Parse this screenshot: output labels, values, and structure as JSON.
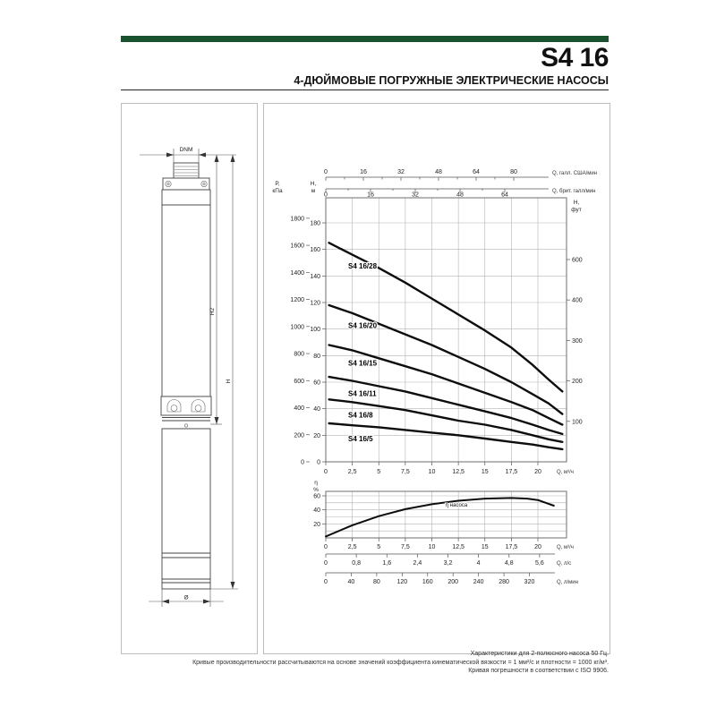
{
  "header": {
    "title": "S4 16",
    "subtitle": "4-ДЮЙМОВЫЕ ПОГРУЖНЫЕ ЭЛЕКТРИЧЕСКИЕ НАСОСЫ",
    "accent_color": "#1a5230"
  },
  "drawing": {
    "labels": {
      "dnm": "DNM",
      "h2": "H2",
      "h": "H",
      "diameter": "Ø"
    }
  },
  "chart_data": [
    {
      "type": "line",
      "title": "Pump head curves S4 16",
      "xlabel": "Q, м³/ч",
      "ylabel_left_outer_lines": [
        "P,",
        "кПа"
      ],
      "ylabel_left_inner_lines": [
        "H,",
        "м"
      ],
      "ylabel_right_lines": [
        "H,",
        "фут"
      ],
      "x_top_axes": [
        {
          "label": "Q, галл. США/мин",
          "ticks": [
            0,
            16,
            32,
            48,
            64,
            80
          ]
        },
        {
          "label": "Q, брит. галл/мин",
          "ticks": [
            0,
            16,
            32,
            48,
            64
          ]
        }
      ],
      "x_tick_values": [
        0,
        2.5,
        5,
        7.5,
        10,
        12.5,
        15,
        17.5,
        20
      ],
      "x_tick_labels": [
        "0",
        "2,5",
        "5",
        "7,5",
        "10",
        "12,5",
        "15",
        "17,5",
        "20"
      ],
      "xlim": [
        0,
        22.7
      ],
      "y_kpa_ticks": [
        0,
        200,
        400,
        600,
        800,
        1000,
        1200,
        1400,
        1600,
        1800
      ],
      "y_m_ticks": [
        0,
        20,
        40,
        60,
        80,
        100,
        120,
        140,
        160,
        180
      ],
      "y_ft_tick_labels": [
        "600",
        "400",
        "300",
        "200",
        "100"
      ],
      "ylim_m": [
        0,
        199
      ],
      "grid": true,
      "series": [
        {
          "name": "S4 16/28",
          "points": [
            [
              0.3,
              165
            ],
            [
              2.5,
              156
            ],
            [
              5,
              146
            ],
            [
              7.5,
              135
            ],
            [
              10,
              123
            ],
            [
              12.5,
              111
            ],
            [
              15,
              99
            ],
            [
              17.5,
              86
            ],
            [
              19.5,
              73
            ],
            [
              21,
              62
            ],
            [
              22.3,
              53
            ]
          ]
        },
        {
          "name": "S4 16/20",
          "points": [
            [
              0.3,
              118
            ],
            [
              2.5,
              112
            ],
            [
              5,
              104
            ],
            [
              7.5,
              96
            ],
            [
              10,
              88
            ],
            [
              12.5,
              79
            ],
            [
              15,
              70
            ],
            [
              17.5,
              60
            ],
            [
              19.5,
              51
            ],
            [
              21,
              44
            ],
            [
              22.3,
              36
            ]
          ]
        },
        {
          "name": "S4 16/15",
          "points": [
            [
              0.3,
              88
            ],
            [
              2.5,
              84
            ],
            [
              5,
              78
            ],
            [
              7.5,
              72
            ],
            [
              10,
              66
            ],
            [
              12.5,
              59
            ],
            [
              15,
              52
            ],
            [
              17.5,
              45
            ],
            [
              19.5,
              39
            ],
            [
              21,
              33
            ],
            [
              22.3,
              28
            ]
          ]
        },
        {
          "name": "S4 16/11",
          "points": [
            [
              0.3,
              64
            ],
            [
              2.5,
              61
            ],
            [
              5,
              57
            ],
            [
              7.5,
              53
            ],
            [
              10,
              48
            ],
            [
              12.5,
              43
            ],
            [
              15,
              38
            ],
            [
              17.5,
              33
            ],
            [
              19.5,
              28
            ],
            [
              21,
              24
            ],
            [
              22.3,
              21
            ]
          ]
        },
        {
          "name": "S4 16/8",
          "points": [
            [
              0.3,
              47
            ],
            [
              2.5,
              45
            ],
            [
              5,
              42
            ],
            [
              7.5,
              39
            ],
            [
              10,
              35
            ],
            [
              12.5,
              31
            ],
            [
              15,
              28
            ],
            [
              17.5,
              24
            ],
            [
              19.5,
              20
            ],
            [
              21,
              17
            ],
            [
              22.3,
              15
            ]
          ]
        },
        {
          "name": "S4 16/5",
          "points": [
            [
              0.3,
              29
            ],
            [
              2.5,
              27.5
            ],
            [
              5,
              26
            ],
            [
              7.5,
              24
            ],
            [
              10,
              22
            ],
            [
              12.5,
              20
            ],
            [
              15,
              17.5
            ],
            [
              17.5,
              15
            ],
            [
              19.5,
              13
            ],
            [
              21,
              11
            ],
            [
              22.3,
              9.5
            ]
          ]
        }
      ]
    },
    {
      "type": "line",
      "title": "Pump efficiency",
      "ylabel_lines": [
        "η",
        "%"
      ],
      "curve_label": "η насоса",
      "y_tick_values": [
        20,
        40,
        60
      ],
      "ylim_pct": [
        0,
        66
      ],
      "x_tick_values": [
        0,
        2.5,
        5,
        7.5,
        10,
        12.5,
        15,
        17.5,
        20
      ],
      "x_tick_labels": [
        "0",
        "2,5",
        "5",
        "7,5",
        "10",
        "12,5",
        "15",
        "17,5",
        "20"
      ],
      "xlabel": "Q, м³/ч",
      "x_scale_ls": {
        "label": "Q, л/с",
        "values": [
          0,
          0.8,
          1.6,
          2.4,
          3.2,
          4,
          4.8,
          5.6
        ],
        "labels": [
          "0",
          "0,8",
          "1,6",
          "2,4",
          "3,2",
          "4",
          "4,8",
          "5,6"
        ]
      },
      "x_scale_lmin": {
        "label": "Q, л/мин",
        "values": [
          0,
          40,
          80,
          120,
          160,
          200,
          240,
          280,
          320
        ],
        "labels": [
          "0",
          "40",
          "80",
          "120",
          "160",
          "200",
          "240",
          "280",
          "320"
        ]
      },
      "grid": true,
      "points": [
        [
          0,
          2
        ],
        [
          2.5,
          18
        ],
        [
          5,
          31
        ],
        [
          7.5,
          41
        ],
        [
          10,
          48
        ],
        [
          12.5,
          53
        ],
        [
          15,
          56
        ],
        [
          17.5,
          57
        ],
        [
          19,
          56
        ],
        [
          20,
          54
        ],
        [
          21.5,
          46
        ]
      ]
    }
  ],
  "footnotes": [
    "Характеристики для 2-полюсного насоса 50 Гц.",
    "Кривые производительности рассчитываются на основе значений коэффициента кинематической вязкости = 1 мм²/с и плотности = 1000 кг/м³.",
    "Кривая погрешности в соответствии с ISO 9906."
  ]
}
